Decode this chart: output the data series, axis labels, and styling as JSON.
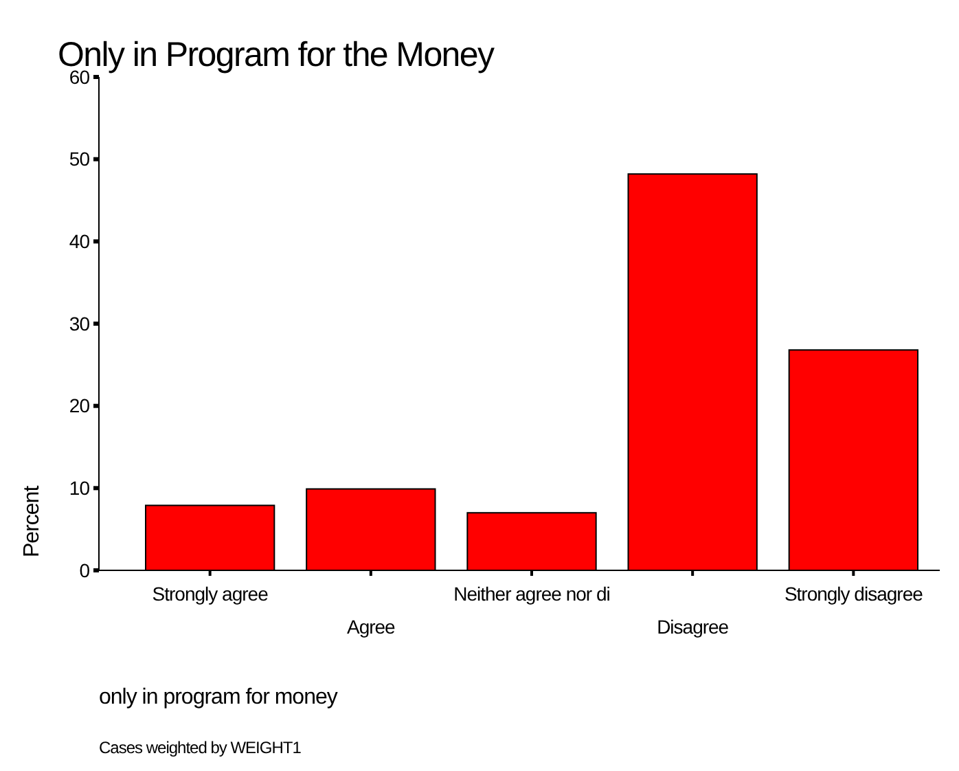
{
  "chart_data": {
    "type": "bar",
    "title": "Only in Program for the Money",
    "xlabel": "only in program for money",
    "ylabel": "Percent",
    "categories": [
      "Strongly agree",
      "Agree",
      "Neither agree nor di",
      "Disagree",
      "Strongly disagree"
    ],
    "values": [
      7.9,
      9.9,
      7.0,
      48.2,
      26.8
    ],
    "color": "#ff0000",
    "ylim": [
      0,
      60
    ],
    "yticks": [
      0,
      10,
      20,
      30,
      40,
      50,
      60
    ],
    "annotations": [
      "Cases weighted by WEIGHT1"
    ]
  }
}
